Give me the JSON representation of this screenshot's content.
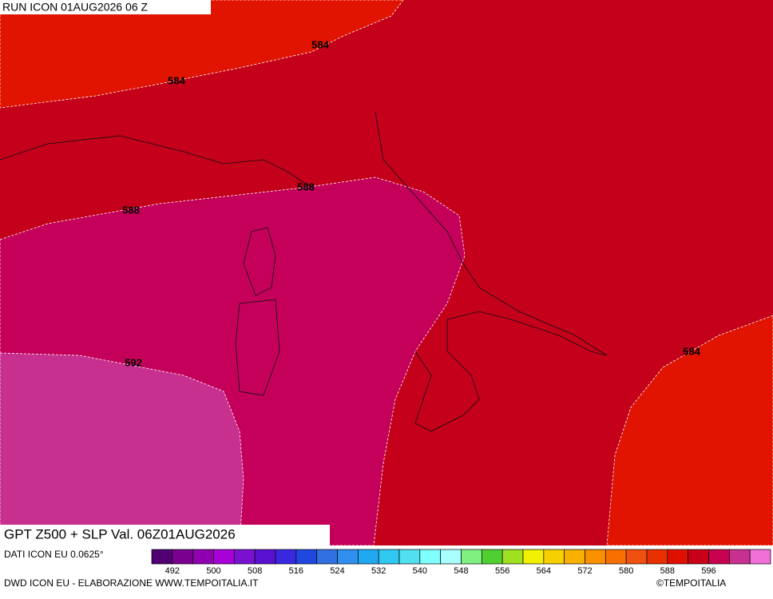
{
  "header": {
    "run": "RUN ICON 01AUG2026 06 Z"
  },
  "map": {
    "contour_labels": [
      {
        "text": "584"
      },
      {
        "text": "584"
      },
      {
        "text": "584"
      },
      {
        "text": "588"
      },
      {
        "text": "588"
      },
      {
        "text": "592"
      }
    ]
  },
  "title": "GPT Z500 + SLP Val. 06Z01AUG2026",
  "footer": {
    "source": "DATI ICON EU 0.0625°",
    "credit": "DWD ICON EU - ELABORAZIONE WWW.TEMPOITALIA.IT",
    "brand": "©TEMPOITALIA"
  },
  "colorbar": {
    "colors": [
      "#500070",
      "#7a0090",
      "#9000b0",
      "#a800d8",
      "#7a10d0",
      "#5a10d0",
      "#3a28e0",
      "#2048e0",
      "#3070e0",
      "#3090f0",
      "#20a8f0",
      "#30c8f0",
      "#50e0f0",
      "#80ffff",
      "#a8ffff",
      "#80f080",
      "#50d030",
      "#a0e020",
      "#f0f000",
      "#f8d000",
      "#f8b000",
      "#f89000",
      "#f87000",
      "#f05010",
      "#e83000",
      "#e01000",
      "#c80018",
      "#c80050",
      "#c83090",
      "#f070d8"
    ],
    "labels": [
      492,
      500,
      508,
      516,
      524,
      532,
      540,
      548,
      556,
      564,
      572,
      580,
      588,
      596
    ]
  }
}
